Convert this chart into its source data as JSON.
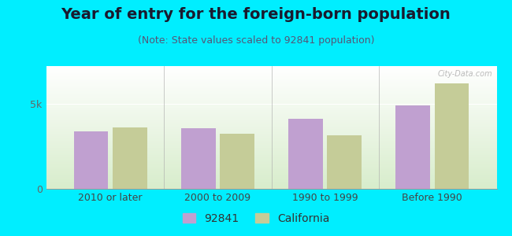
{
  "title": "Year of entry for the foreign-born population",
  "subtitle": "(Note: State values scaled to 92841 population)",
  "categories": [
    "2010 or later",
    "2000 to 2009",
    "1990 to 1999",
    "Before 1990"
  ],
  "values_92841": [
    3350,
    3550,
    4100,
    4900
  ],
  "values_california": [
    3600,
    3250,
    3150,
    6200
  ],
  "bar_color_92841": "#c0a0d0",
  "bar_color_california": "#c5cc98",
  "background_outer": "#00eeff",
  "ytick_labels": [
    "0",
    "5k"
  ],
  "ytick_values": [
    0,
    5000
  ],
  "ylim": [
    0,
    7200
  ],
  "title_fontsize": 14,
  "subtitle_fontsize": 9,
  "tick_fontsize": 9,
  "legend_label_92841": "92841",
  "legend_label_california": "California",
  "watermark": "City-Data.com",
  "bar_width": 0.32
}
